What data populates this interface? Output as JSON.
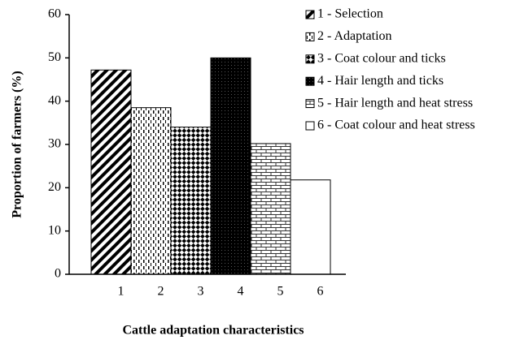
{
  "chart_data": {
    "type": "bar",
    "categories": [
      "1",
      "2",
      "3",
      "4",
      "5",
      "6"
    ],
    "values": [
      47.2,
      38.5,
      34,
      50,
      30.2,
      21.8
    ],
    "legend": [
      "1 - Selection",
      "2 - Adaptation",
      "3 - Coat colour and ticks",
      "4 - Hair length and ticks",
      "5 - Hair length and heat stress",
      "6 - Coat colour and heat stress"
    ],
    "ylim": [
      0,
      60
    ],
    "yticks": [
      0,
      10,
      20,
      30,
      40,
      50,
      60
    ],
    "xlabel": "Cattle adaptation characteristics",
    "ylabel": "Proportion of farmers (%)"
  }
}
